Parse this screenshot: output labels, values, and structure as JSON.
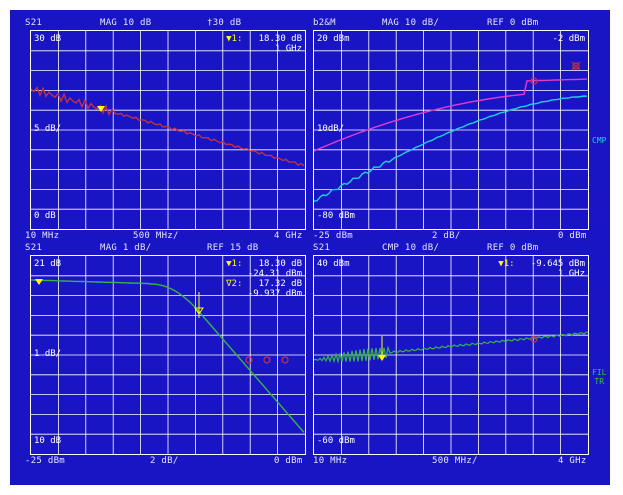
{
  "colors": {
    "screen_bg": "#1a15c4",
    "grid": "#ffffff",
    "trace_red": "#c0304a",
    "trace_magenta": "#e13cd0",
    "trace_cyan": "#1fd1e0",
    "trace_green": "#36b44a",
    "marker": "#ffff00"
  },
  "panes": [
    {
      "id": "top-left",
      "header": {
        "param": "S21",
        "format": "MAG 10 dB",
        "ref": "†30 dB"
      },
      "y_top": "30 dB",
      "y_scale": "5 dB/",
      "y_bottom": "0 dB",
      "x_start": "10 MHz",
      "x_div": "500 MHz/",
      "x_stop": "4 GHz",
      "marker": {
        "label": "▼1:",
        "value": "18.30 dB",
        "freq": "1 GHz"
      }
    },
    {
      "id": "top-right",
      "header": {
        "param": "b2&M",
        "format": "MAG 10 dB/",
        "ref": "REF 0 dBm"
      },
      "y_top": "20 dBm",
      "y_mid": "10dB/",
      "y_bottom": "-80 dBm",
      "x_start": "-25 dBm",
      "x_div": "2 dB/",
      "x_stop": "0 dBm",
      "marker_top": "-2 dBm",
      "side_label": "CMP"
    },
    {
      "id": "bottom-left",
      "header": {
        "param": "S21",
        "format": "MAG 1 dB/",
        "ref": "REF 15 dB"
      },
      "y_top": "21 dB",
      "y_mid": "1 dB/",
      "y_bottom": "10 dB",
      "x_start": "-25 dBm",
      "x_div": "2 dB/",
      "x_stop": "0 dBm",
      "marker1": {
        "label": "▼1:",
        "value": "18.30 dB",
        "power": "-24.31 dBm"
      },
      "marker2": {
        "label": "∇2:",
        "value": "17.32 dB",
        "power": "-9.937 dBm"
      }
    },
    {
      "id": "bottom-right",
      "header": {
        "param": "S21",
        "format": "CMP 10 dB/",
        "ref": "REF 0 dBm"
      },
      "y_top": "40 dBm",
      "y_bottom": "-60 dBm",
      "x_start": "10 MHz",
      "x_div": "500 MHz/",
      "x_stop": "4 GHz",
      "marker": {
        "label": "▼1:",
        "value": "-9.645 dBm",
        "freq": "1 GHz"
      },
      "side_label": "FIL\nTR"
    }
  ]
}
